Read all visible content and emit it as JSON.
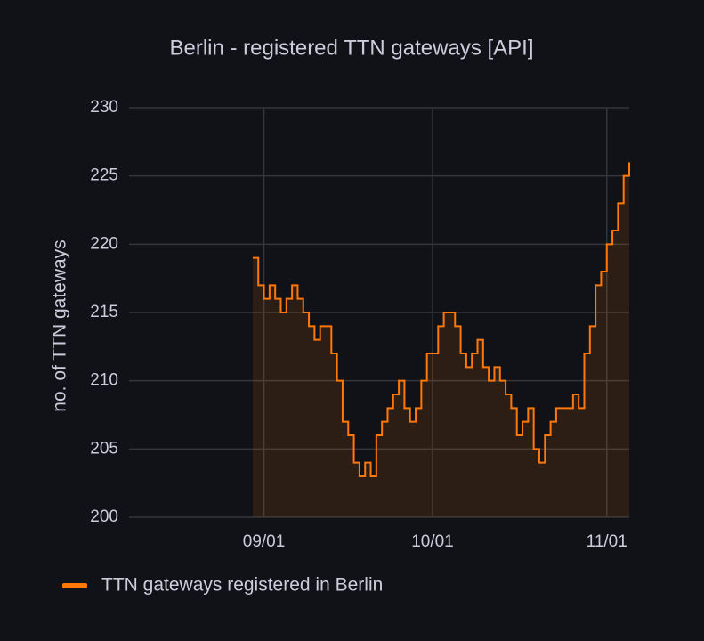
{
  "chart_data": {
    "type": "step-area",
    "title": "Berlin - registered TTN gateways [API]",
    "y_label": "no. of TTN gateways",
    "x": [
      "08/30",
      "08/31",
      "09/01",
      "09/02",
      "09/03",
      "09/04",
      "09/05",
      "09/06",
      "09/07",
      "09/08",
      "09/09",
      "09/10",
      "09/11",
      "09/12",
      "09/13",
      "09/14",
      "09/15",
      "09/16",
      "09/17",
      "09/18",
      "09/19",
      "09/20",
      "09/21",
      "09/22",
      "09/23",
      "09/24",
      "09/25",
      "09/26",
      "09/27",
      "09/28",
      "09/29",
      "09/30",
      "10/01",
      "10/02",
      "10/03",
      "10/04",
      "10/05",
      "10/06",
      "10/07",
      "10/08",
      "10/09",
      "10/10",
      "10/11",
      "10/12",
      "10/13",
      "10/14",
      "10/15",
      "10/16",
      "10/17",
      "10/18",
      "10/19",
      "10/20",
      "10/21",
      "10/22",
      "10/23",
      "10/24",
      "10/25",
      "10/26",
      "10/27",
      "10/28",
      "10/29",
      "10/30",
      "10/31",
      "11/01",
      "11/02",
      "11/03",
      "11/04",
      "11/05"
    ],
    "series": [
      {
        "name": "TTN gateways registered in Berlin",
        "color": "#ff780a",
        "values": [
          219,
          217,
          216,
          217,
          216,
          215,
          216,
          217,
          216,
          215,
          214,
          213,
          214,
          214,
          212,
          210,
          207,
          206,
          204,
          203,
          204,
          203,
          206,
          207,
          208,
          209,
          210,
          208,
          207,
          208,
          210,
          212,
          212,
          214,
          215,
          215,
          214,
          212,
          211,
          212,
          213,
          211,
          210,
          211,
          210,
          209,
          208,
          206,
          207,
          208,
          205,
          204,
          206,
          207,
          208,
          208,
          208,
          209,
          208,
          212,
          214,
          217,
          218,
          220,
          221,
          223,
          225,
          226
        ]
      }
    ],
    "xlim": [
      "08/08",
      "11/05"
    ],
    "xticks": [
      "09/01",
      "10/01",
      "11/01"
    ],
    "ylim": [
      200,
      230
    ],
    "yticks": [
      200,
      205,
      210,
      215,
      220,
      225,
      230
    ],
    "grid": true,
    "legend": "bottom-left"
  }
}
